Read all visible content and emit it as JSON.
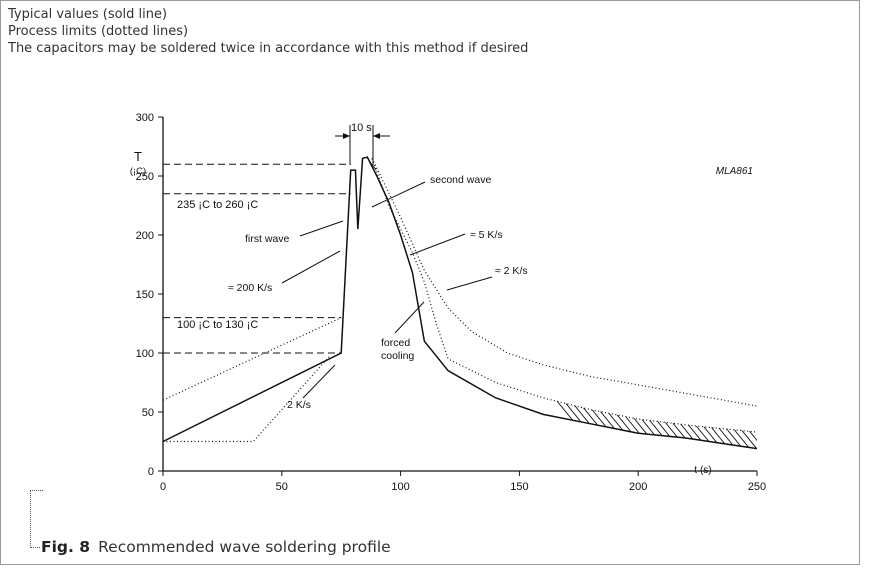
{
  "notes": [
    "Typical values (sold line)",
    "Process limits (dotted lines)",
    "The capacitors may be soldered twice in accordance with this method if desired"
  ],
  "caption": {
    "fig": "Fig. 8",
    "text": "Recommended wave soldering profile"
  },
  "chart_data": {
    "type": "line",
    "title": "",
    "xlabel": "t (s)",
    "ylabel": "T",
    "ylabel_unit": "(¡C)",
    "xlim": [
      0,
      250
    ],
    "ylim": [
      0,
      300
    ],
    "xticks": [
      0,
      50,
      100,
      150,
      200,
      250
    ],
    "yticks": [
      0,
      50,
      100,
      150,
      200,
      250,
      300
    ],
    "grid": false,
    "code_label": "MLA861",
    "series": [
      {
        "style": "solid",
        "x": [
          0,
          75,
          79,
          81,
          82,
          84,
          86,
          90,
          95,
          100,
          105,
          110,
          120,
          140,
          160,
          180,
          200,
          220,
          250
        ],
        "y": [
          25,
          100,
          255,
          255,
          205,
          265,
          266,
          250,
          228,
          200,
          168,
          110,
          85,
          62,
          48,
          40,
          32,
          28,
          19
        ]
      },
      {
        "style": "dotted",
        "x": [
          0,
          75
        ],
        "y": [
          60,
          130
        ]
      },
      {
        "style": "dotted",
        "x": [
          0,
          38,
          70
        ],
        "y": [
          25,
          25,
          97
        ]
      },
      {
        "style": "dotted",
        "x": [
          88,
          100,
          110,
          120,
          130,
          145,
          160,
          180,
          200,
          225,
          250
        ],
        "y": [
          265,
          215,
          170,
          138,
          118,
          100,
          90,
          80,
          73,
          64,
          55
        ]
      },
      {
        "style": "dotted",
        "x": [
          88,
          95,
          100,
          105,
          110,
          115,
          120,
          140,
          160,
          180,
          200,
          225,
          250
        ],
        "y": [
          265,
          225,
          205,
          185,
          160,
          125,
          95,
          75,
          62,
          52,
          44,
          38,
          33
        ]
      }
    ],
    "reference_lines": [
      {
        "y": 260,
        "x_end": 79
      },
      {
        "y": 235,
        "x_end": 79
      },
      {
        "y": 130,
        "x_end": 75
      },
      {
        "y": 100,
        "x_end": 75
      }
    ],
    "annotations": [
      {
        "text": "235 ¡C  to  260 ¡C"
      },
      {
        "text": "100 ¡C  to  130 ¡C"
      },
      {
        "text": "10 s"
      },
      {
        "text": "second wave"
      },
      {
        "text": "first wave"
      },
      {
        "text": "≈ 5 K/s"
      },
      {
        "text": "≈ 2 K/s"
      },
      {
        "text": "≈ 200 K/s"
      },
      {
        "text": "forced"
      },
      {
        "text": "cooling"
      },
      {
        "text": "2 K/s"
      }
    ]
  }
}
